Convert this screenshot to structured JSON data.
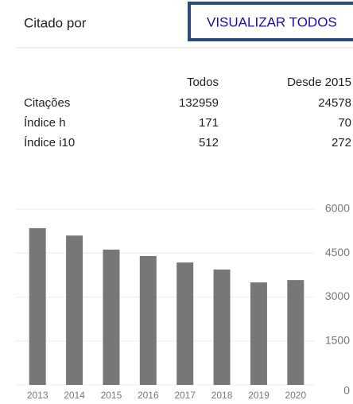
{
  "header": {
    "title": "Citado por",
    "button": "VISUALIZAR TODOS"
  },
  "table": {
    "columns": [
      "Todos",
      "Desde 2015"
    ],
    "rows": [
      [
        "Citações",
        132959,
        24578
      ],
      [
        "Índice h",
        171,
        70
      ],
      [
        "Índice i10",
        512,
        272
      ]
    ]
  },
  "chart_data": {
    "type": "bar",
    "categories": [
      "2013",
      "2014",
      "2015",
      "2016",
      "2017",
      "2018",
      "2019",
      "2020"
    ],
    "values": [
      5350,
      5100,
      4620,
      4400,
      4180,
      3940,
      3500,
      3580
    ],
    "color": "#777777",
    "ylim": [
      0,
      6000
    ],
    "yticks": [
      0,
      1500,
      3000,
      4500,
      6000
    ],
    "grid": true
  }
}
